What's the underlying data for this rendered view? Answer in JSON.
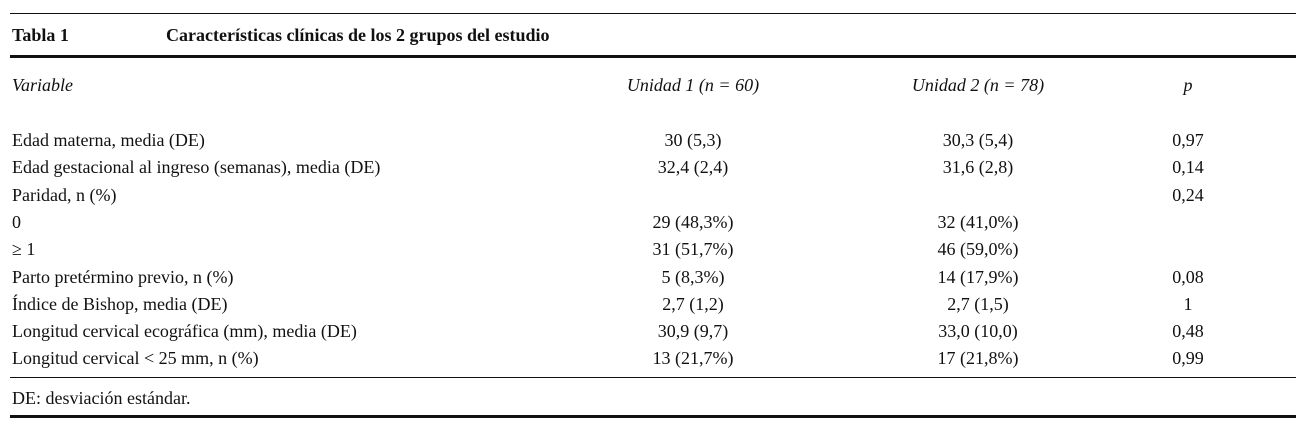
{
  "table": {
    "label": "Tabla 1",
    "title": "Características clínicas de los 2 grupos del estudio",
    "header": [
      "Variable",
      "Unidad 1 (n = 60)",
      "Unidad 2 (n = 78)",
      "p"
    ],
    "rows": [
      [
        "Edad materna, media (DE)",
        "30 (5,3)",
        "30,3 (5,4)",
        "0,97"
      ],
      [
        "Edad gestacional al ingreso (semanas), media (DE)",
        "32,4 (2,4)",
        "31,6 (2,8)",
        "0,14"
      ],
      [
        "Paridad, n (%)",
        null,
        null,
        "0,24"
      ],
      [
        "0",
        "29 (48,3%)",
        "32 (41,0%)",
        null
      ],
      [
        "≥ 1",
        "31 (51,7%)",
        "46 (59,0%)",
        null
      ],
      [
        "Parto pretérmino previo, n (%)",
        "5 (8,3%)",
        "14 (17,9%)",
        "0,08"
      ],
      [
        "Índice de Bishop, media (DE)",
        "2,7 (1,2)",
        "2,7 (1,5)",
        "1"
      ],
      [
        "Longitud cervical ecográfica (mm), media (DE)",
        "30,9 (9,7)",
        "33,0 (10,0)",
        "0,48"
      ],
      [
        "Longitud cervical < 25 mm, n (%)",
        "13 (21,7%)",
        "17 (21,8%)",
        "0,99"
      ]
    ],
    "footnote": "DE: desviación estándar."
  }
}
